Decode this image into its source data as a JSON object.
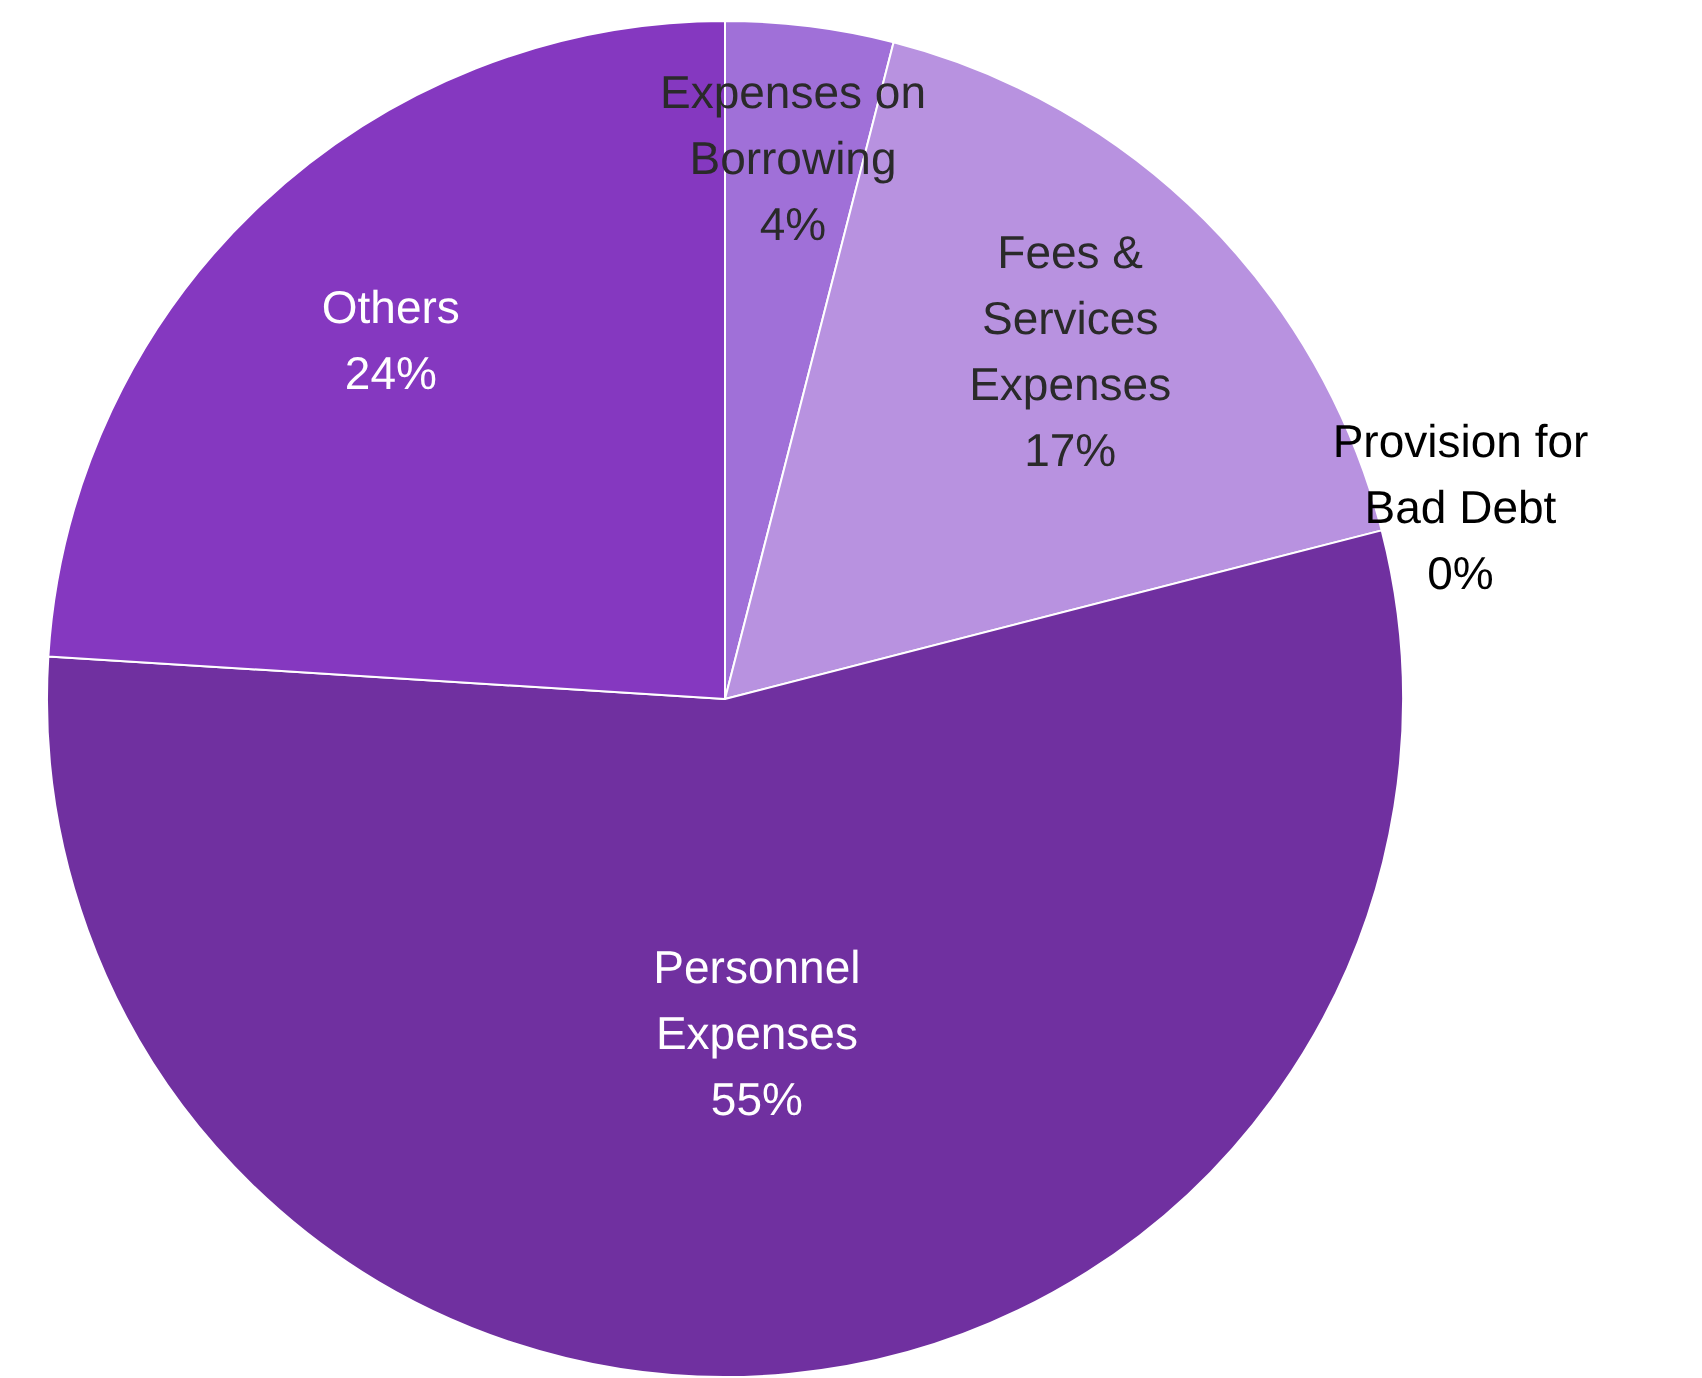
{
  "chart_data": {
    "type": "pie",
    "categories": [
      "Expenses on\nBorrowing",
      "Fees &\nServices\nExpenses",
      "Provision for\nBad Debt",
      "Personnel\nExpenses",
      "Others"
    ],
    "values": [
      4,
      17,
      0,
      55,
      24
    ],
    "value_labels": [
      "4%",
      "17%",
      "0%",
      "55%",
      "24%"
    ],
    "colors": [
      "#a070d8",
      "#b892e0",
      "#9a9a9a",
      "#7030a0",
      "#8538c0"
    ],
    "legend": false
  }
}
